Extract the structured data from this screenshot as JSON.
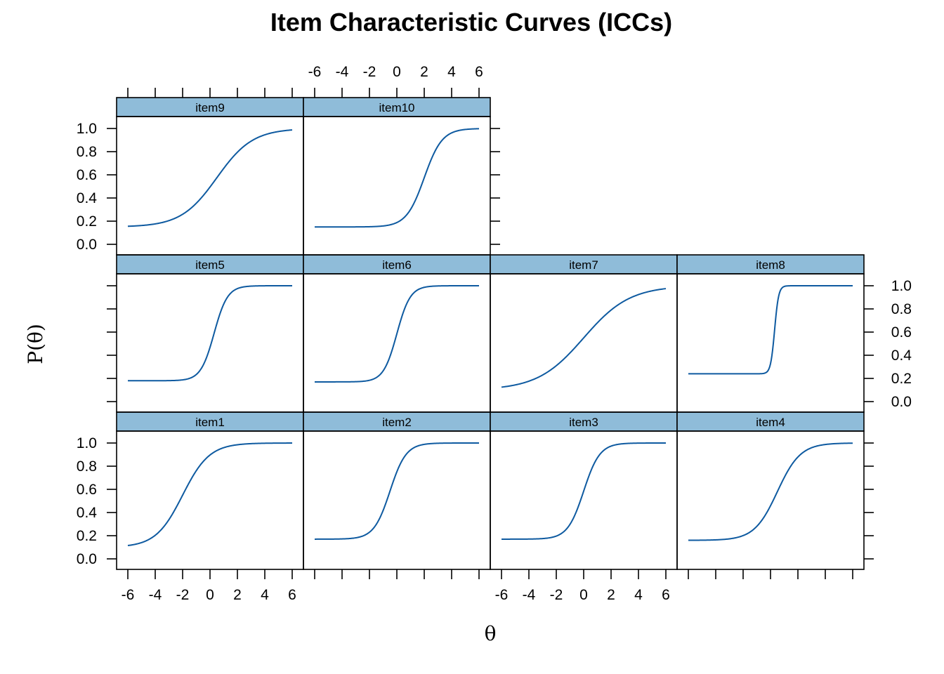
{
  "chart_data": {
    "type": "line",
    "title": "Item Characteristic Curves (ICCs)",
    "xlabel": "θ",
    "ylabel": "P(θ)",
    "xlim": [
      -6,
      6
    ],
    "ylim": [
      0,
      1
    ],
    "x_ticks": [
      -6,
      -4,
      -2,
      0,
      2,
      4,
      6
    ],
    "y_ticks": [
      0.0,
      0.2,
      0.4,
      0.6,
      0.8,
      1.0
    ],
    "x_tick_labels": [
      "-6",
      "-4",
      "-2",
      "0",
      "2",
      "4",
      "6"
    ],
    "y_tick_labels": [
      "0.0",
      "0.2",
      "0.4",
      "0.6",
      "0.8",
      "1.0"
    ],
    "layout": "4 columns x 3 rows",
    "line_color": "#0e5aa0",
    "strip_color": "#8fbcd9",
    "panels": [
      {
        "name": "item1",
        "row": 3,
        "col": 1,
        "a": 0.6,
        "b": -2.0,
        "c": 0.1
      },
      {
        "name": "item2",
        "row": 3,
        "col": 2,
        "a": 1.0,
        "b": -0.5,
        "c": 0.17
      },
      {
        "name": "item3",
        "row": 3,
        "col": 3,
        "a": 1.0,
        "b": 0.0,
        "c": 0.17
      },
      {
        "name": "item4",
        "row": 3,
        "col": 4,
        "a": 0.7,
        "b": 0.5,
        "c": 0.16
      },
      {
        "name": "item5",
        "row": 2,
        "col": 1,
        "a": 1.2,
        "b": 0.3,
        "c": 0.18
      },
      {
        "name": "item6",
        "row": 2,
        "col": 2,
        "a": 1.2,
        "b": 0.0,
        "c": 0.17
      },
      {
        "name": "item7",
        "row": 2,
        "col": 3,
        "a": 0.35,
        "b": 0.0,
        "c": 0.1
      },
      {
        "name": "item8",
        "row": 2,
        "col": 4,
        "a": 4.0,
        "b": 0.3,
        "c": 0.24
      },
      {
        "name": "item9",
        "row": 1,
        "col": 1,
        "a": 0.45,
        "b": 0.5,
        "c": 0.15
      },
      {
        "name": "item10",
        "row": 1,
        "col": 2,
        "a": 0.9,
        "b": 2.0,
        "c": 0.15
      }
    ]
  }
}
